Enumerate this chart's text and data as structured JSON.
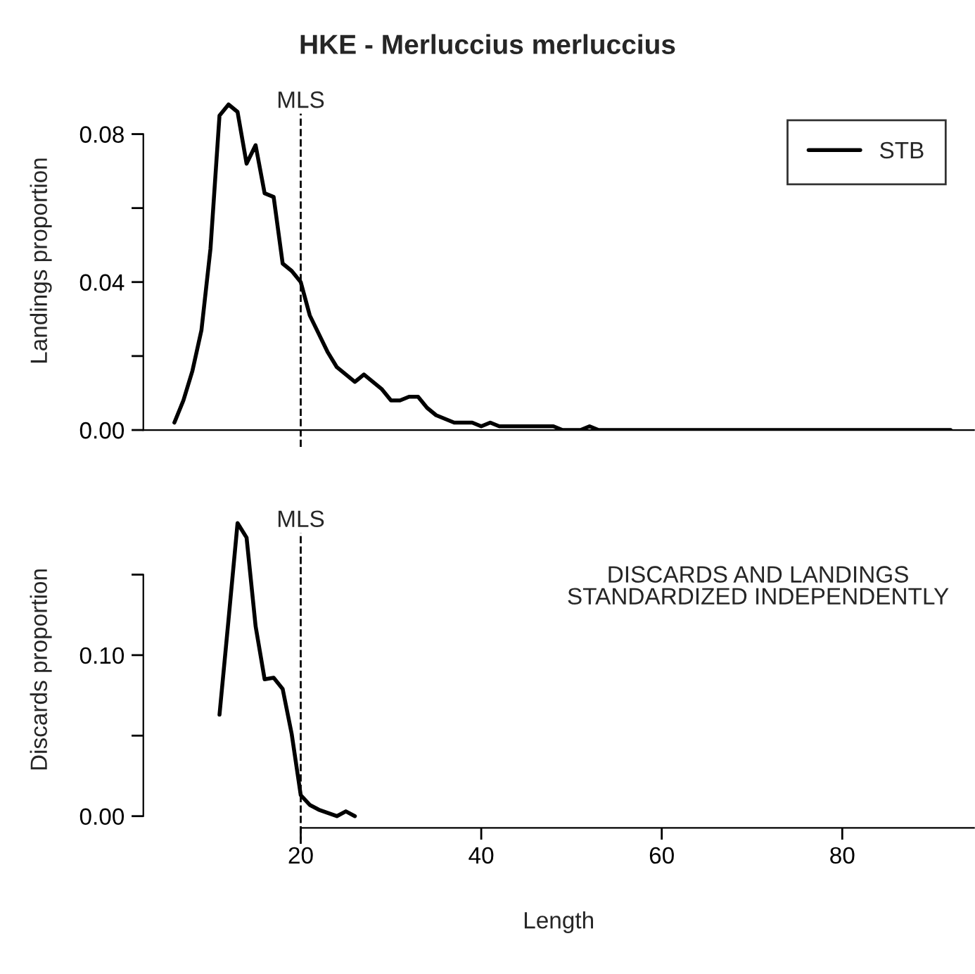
{
  "chart_data": [
    {
      "type": "line",
      "title": "HKE - Merluccius merluccius",
      "ylabel": "Landings proportion",
      "series": [
        {
          "name": "STB",
          "color": "#000000",
          "x": [
            6,
            7,
            8,
            9,
            10,
            11,
            12,
            13,
            14,
            15,
            16,
            17,
            18,
            19,
            20,
            21,
            22,
            23,
            24,
            25,
            26,
            27,
            28,
            29,
            30,
            31,
            32,
            33,
            34,
            35,
            36,
            37,
            38,
            39,
            40,
            41,
            42,
            43,
            44,
            45,
            46,
            47,
            48,
            49,
            50,
            51,
            52,
            53,
            55,
            60,
            65,
            70,
            75,
            80,
            85,
            92
          ],
          "values": [
            0.002,
            0.008,
            0.016,
            0.027,
            0.049,
            0.085,
            0.088,
            0.086,
            0.072,
            0.077,
            0.064,
            0.063,
            0.045,
            0.043,
            0.04,
            0.031,
            0.026,
            0.021,
            0.017,
            0.015,
            0.013,
            0.015,
            0.013,
            0.011,
            0.008,
            0.008,
            0.009,
            0.009,
            0.006,
            0.004,
            0.003,
            0.002,
            0.002,
            0.002,
            0.001,
            0.002,
            0.001,
            0.001,
            0.001,
            0.001,
            0.001,
            0.001,
            0.001,
            0.0,
            0.0,
            0.0,
            0.001,
            0.0,
            0.0,
            0.0,
            0.0,
            0.0,
            0.0,
            0.0,
            0.0,
            0.0
          ]
        }
      ],
      "xlim": [
        2.56,
        94.6
      ],
      "ylim": [
        0,
        0.0915
      ],
      "yticks": [
        {
          "value": 0,
          "label": "0.00"
        },
        {
          "value": 0.02,
          "label": null
        },
        0.04,
        {
          "value": 0.06,
          "label": null
        },
        0.08
      ],
      "tick_labels": "y",
      "legend": "top right",
      "line_style": "solid",
      "marker": "none",
      "grid": false,
      "ref_lines": [
        {
          "axis": "x",
          "value": 20,
          "label": "MLS",
          "line_style": "dashed"
        }
      ]
    },
    {
      "type": "line",
      "xlabel": "Length",
      "ylabel": "Discards proportion",
      "series": [
        {
          "color": "#000000",
          "x": [
            11,
            12,
            13,
            14,
            15,
            16,
            17,
            18,
            19,
            20,
            21,
            22,
            23,
            24,
            25,
            26
          ],
          "values": [
            0.063,
            0.122,
            0.182,
            0.173,
            0.118,
            0.085,
            0.086,
            0.079,
            0.051,
            0.013,
            0.007,
            0.004,
            0.002,
            0.0,
            0.003,
            0.0
          ]
        }
      ],
      "xlim": [
        2.56,
        94.6
      ],
      "ylim": [
        -0.0073,
        0.1893
      ],
      "xticks": [
        20,
        40,
        60,
        80
      ],
      "yticks": [
        {
          "value": 0,
          "label": "0.00"
        },
        {
          "value": 0.05,
          "label": null
        },
        {
          "value": 0.1,
          "label": "0.10"
        },
        {
          "value": 0.15,
          "label": null
        }
      ],
      "line_style": "solid",
      "marker": "none",
      "grid": false,
      "ref_lines": [
        {
          "axis": "x",
          "value": 20,
          "label": "MLS",
          "line_style": "dashed"
        }
      ],
      "annotations": [
        "DISCARDS AND LANDINGS\nSTANDARDIZED INDEPENDENTLY"
      ]
    }
  ]
}
